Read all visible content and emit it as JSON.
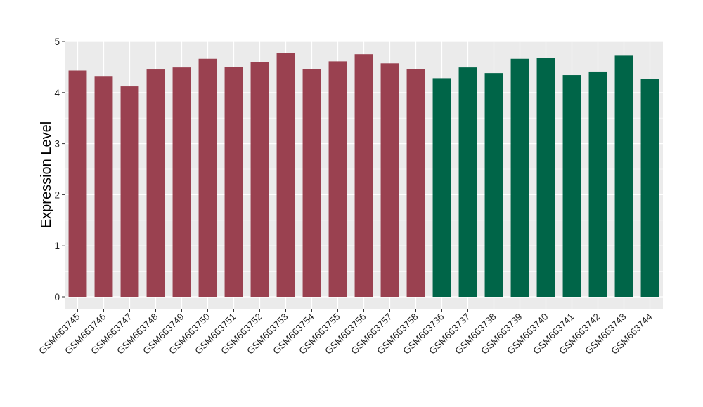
{
  "chart_data": {
    "type": "bar",
    "ylabel": "Expression Level",
    "xlabel": "",
    "ylim": [
      0,
      5
    ],
    "yticks": [
      0,
      1,
      2,
      3,
      4,
      5
    ],
    "grid": true,
    "categories": [
      "GSM663745",
      "GSM663746",
      "GSM663747",
      "GSM663748",
      "GSM663749",
      "GSM663750",
      "GSM663751",
      "GSM663752",
      "GSM663753",
      "GSM663754",
      "GSM663755",
      "GSM663756",
      "GSM663757",
      "GSM663758",
      "GSM663736",
      "GSM663737",
      "GSM663738",
      "GSM663739",
      "GSM663740",
      "GSM663741",
      "GSM663742",
      "GSM663743",
      "GSM663744"
    ],
    "values": [
      4.43,
      4.31,
      4.12,
      4.45,
      4.49,
      4.66,
      4.5,
      4.59,
      4.78,
      4.46,
      4.61,
      4.75,
      4.57,
      4.46,
      4.28,
      4.49,
      4.38,
      4.66,
      4.68,
      4.34,
      4.41,
      4.72,
      4.27
    ],
    "bar_colors": [
      "#9a4150",
      "#9a4150",
      "#9a4150",
      "#9a4150",
      "#9a4150",
      "#9a4150",
      "#9a4150",
      "#9a4150",
      "#9a4150",
      "#9a4150",
      "#9a4150",
      "#9a4150",
      "#9a4150",
      "#9a4150",
      "#006548",
      "#006548",
      "#006548",
      "#006548",
      "#006548",
      "#006548",
      "#006548",
      "#006548",
      "#006548"
    ],
    "panel_color": "#ebebeb",
    "grid_color": "#ffffff"
  }
}
